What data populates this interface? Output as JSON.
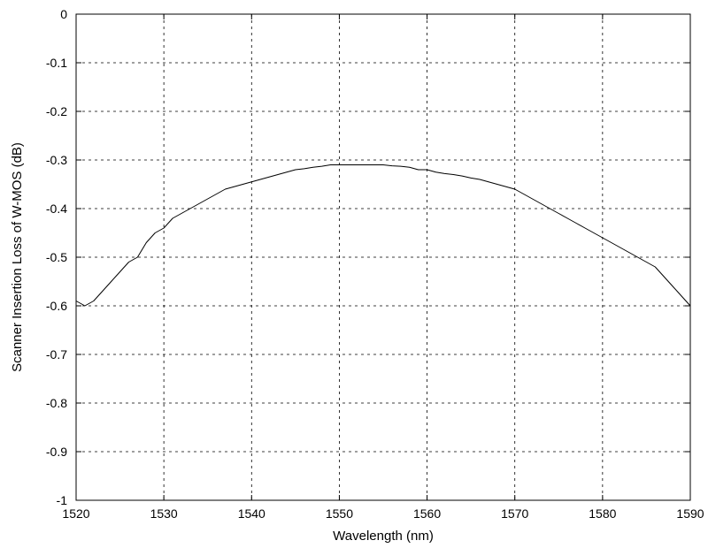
{
  "chart_data": {
    "type": "line",
    "title": "",
    "xlabel": "Wavelength (nm)",
    "ylabel": "Scanner Insertion Loss of W-MOS (dB)",
    "xlim": [
      1520,
      1590
    ],
    "ylim": [
      -1,
      0
    ],
    "grid": true,
    "x_ticks": [
      "1520",
      "1530",
      "1540",
      "1550",
      "1560",
      "1570",
      "1580",
      "1590"
    ],
    "y_ticks": [
      "0",
      "-0.1",
      "-0.2",
      "-0.3",
      "-0.4",
      "-0.5",
      "-0.6",
      "-0.7",
      "-0.8",
      "-0.9",
      "-1"
    ],
    "line_color": "#000000",
    "series": [
      {
        "x": [
          1520,
          1521,
          1522,
          1523,
          1524,
          1525,
          1526,
          1527,
          1528,
          1529,
          1530,
          1531,
          1532,
          1533,
          1534,
          1535,
          1536,
          1537,
          1538,
          1539,
          1540,
          1541,
          1542,
          1543,
          1544,
          1545,
          1546,
          1547,
          1548,
          1549,
          1550,
          1551,
          1552,
          1553,
          1554,
          1555,
          1556,
          1557,
          1558,
          1559,
          1560,
          1561,
          1562,
          1563,
          1564,
          1565,
          1566,
          1567,
          1568,
          1569,
          1570,
          1571,
          1572,
          1573,
          1574,
          1575,
          1576,
          1577,
          1578,
          1579,
          1580,
          1581,
          1582,
          1583,
          1584,
          1585,
          1586,
          1587,
          1588,
          1589,
          1590
        ],
        "y": [
          -0.59,
          -0.6,
          -0.59,
          -0.57,
          -0.55,
          -0.53,
          -0.51,
          -0.5,
          -0.47,
          -0.45,
          -0.44,
          -0.42,
          -0.41,
          -0.4,
          -0.39,
          -0.38,
          -0.37,
          -0.36,
          -0.355,
          -0.35,
          -0.345,
          -0.34,
          -0.335,
          -0.33,
          -0.325,
          -0.32,
          -0.318,
          -0.315,
          -0.313,
          -0.31,
          -0.31,
          -0.31,
          -0.31,
          -0.31,
          -0.31,
          -0.31,
          -0.312,
          -0.313,
          -0.315,
          -0.32,
          -0.32,
          -0.325,
          -0.328,
          -0.33,
          -0.333,
          -0.337,
          -0.34,
          -0.345,
          -0.35,
          -0.355,
          -0.36,
          -0.37,
          -0.38,
          -0.39,
          -0.4,
          -0.41,
          -0.42,
          -0.43,
          -0.44,
          -0.45,
          -0.46,
          -0.47,
          -0.48,
          -0.49,
          -0.5,
          -0.51,
          -0.52,
          -0.54,
          -0.56,
          -0.58,
          -0.6
        ]
      }
    ]
  }
}
